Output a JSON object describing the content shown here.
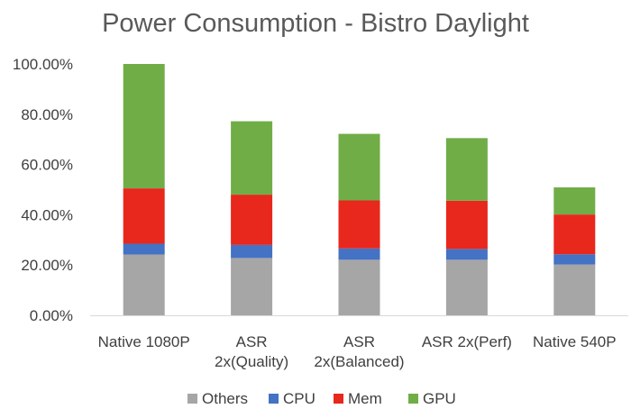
{
  "chart_data": {
    "type": "bar",
    "stacked": true,
    "title": "Power Consumption  - Bistro Daylight",
    "xlabel": "",
    "ylabel": "",
    "ylim": [
      0,
      100
    ],
    "y_ticks": [
      "0.00%",
      "20.00%",
      "40.00%",
      "60.00%",
      "80.00%",
      "100.00%"
    ],
    "y_tick_values": [
      0,
      20,
      40,
      60,
      80,
      100
    ],
    "categories": [
      [
        "Native 1080P"
      ],
      [
        "ASR",
        "2x(Quality)"
      ],
      [
        "ASR",
        "2x(Balanced)"
      ],
      [
        "ASR 2x(Perf)"
      ],
      [
        "Native 540P"
      ]
    ],
    "series": [
      {
        "name": "Others",
        "color": "#a6a6a6",
        "values": [
          24.2,
          22.8,
          22.1,
          22.1,
          20.2
        ]
      },
      {
        "name": "CPU",
        "color": "#4472c4",
        "values": [
          4.3,
          5.2,
          4.5,
          4.3,
          4.1
        ]
      },
      {
        "name": "Mem",
        "color": "#e8271d",
        "values": [
          22.0,
          20.0,
          19.1,
          19.2,
          15.8
        ]
      },
      {
        "name": "GPU",
        "color": "#70ad47",
        "values": [
          49.5,
          29.2,
          26.5,
          24.9,
          10.8
        ]
      }
    ],
    "grid": false,
    "legend_position": "bottom"
  }
}
